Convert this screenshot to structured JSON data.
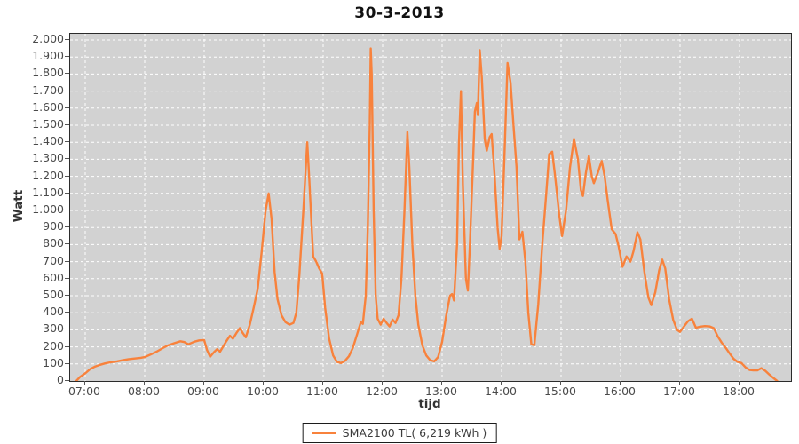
{
  "colors": {
    "line": "#f8823c",
    "plot_background": "#d2d2d2",
    "grid": "#ffffff",
    "border": "#2b2b2b",
    "tick_text": "#4a4a4a",
    "title_text": "#111111"
  },
  "chart_data": {
    "type": "line",
    "title": "30-3-2013",
    "xlabel": "tijd",
    "ylabel": "Watt",
    "ylim": [
      0,
      2000
    ],
    "grid": "white dashed gridlines on gray plot background",
    "legend_position": "bottom-center",
    "legend_label": "SMA2100 TL( 6,219 kWh )",
    "ytick_values": [
      0,
      100,
      200,
      300,
      400,
      500,
      600,
      700,
      800,
      900,
      1000,
      1100,
      1200,
      1300,
      1400,
      1500,
      1600,
      1700,
      1800,
      1900,
      2000
    ],
    "ytick_labels": [
      "0",
      "100",
      "200",
      "300",
      "400",
      "500",
      "600",
      "700",
      "800",
      "900",
      "1.000",
      "1.100",
      "1.200",
      "1.300",
      "1.400",
      "1.500",
      "1.600",
      "1.700",
      "1.800",
      "1.900",
      "2.000"
    ],
    "xtick_labels": [
      "07:00",
      "08:00",
      "09:00",
      "10:00",
      "11:00",
      "12:00",
      "13:00",
      "14:00",
      "15:00",
      "16:00",
      "17:00",
      "18:00"
    ],
    "series": [
      {
        "name": "SMA2100 TL( 6,219 kWh )",
        "color": "#f8823c",
        "points": [
          [
            "06:51",
            0
          ],
          [
            "06:55",
            25
          ],
          [
            "07:00",
            45
          ],
          [
            "07:05",
            70
          ],
          [
            "07:10",
            85
          ],
          [
            "07:15",
            95
          ],
          [
            "07:20",
            103
          ],
          [
            "07:26",
            110
          ],
          [
            "07:32",
            115
          ],
          [
            "07:38",
            122
          ],
          [
            "07:44",
            128
          ],
          [
            "07:50",
            132
          ],
          [
            "07:56",
            136
          ],
          [
            "08:00",
            140
          ],
          [
            "08:06",
            155
          ],
          [
            "08:12",
            172
          ],
          [
            "08:18",
            192
          ],
          [
            "08:24",
            210
          ],
          [
            "08:30",
            222
          ],
          [
            "08:36",
            233
          ],
          [
            "08:40",
            228
          ],
          [
            "08:44",
            215
          ],
          [
            "08:50",
            230
          ],
          [
            "08:55",
            238
          ],
          [
            "09:00",
            240
          ],
          [
            "09:03",
            180
          ],
          [
            "09:06",
            142
          ],
          [
            "09:10",
            170
          ],
          [
            "09:13",
            186
          ],
          [
            "09:16",
            172
          ],
          [
            "09:22",
            230
          ],
          [
            "09:26",
            265
          ],
          [
            "09:29",
            248
          ],
          [
            "09:33",
            285
          ],
          [
            "09:36",
            310
          ],
          [
            "09:39",
            280
          ],
          [
            "09:42",
            256
          ],
          [
            "09:46",
            330
          ],
          [
            "09:50",
            430
          ],
          [
            "09:54",
            540
          ],
          [
            "09:58",
            760
          ],
          [
            "10:02",
            1000
          ],
          [
            "10:05",
            1100
          ],
          [
            "10:08",
            950
          ],
          [
            "10:11",
            640
          ],
          [
            "10:14",
            480
          ],
          [
            "10:18",
            385
          ],
          [
            "10:22",
            345
          ],
          [
            "10:26",
            330
          ],
          [
            "10:30",
            340
          ],
          [
            "10:33",
            400
          ],
          [
            "10:36",
            620
          ],
          [
            "10:40",
            1000
          ],
          [
            "10:44",
            1400
          ],
          [
            "10:46",
            1180
          ],
          [
            "10:48",
            950
          ],
          [
            "10:50",
            730
          ],
          [
            "10:53",
            700
          ],
          [
            "10:56",
            660
          ],
          [
            "10:59",
            630
          ],
          [
            "11:02",
            430
          ],
          [
            "11:06",
            250
          ],
          [
            "11:10",
            150
          ],
          [
            "11:14",
            112
          ],
          [
            "11:18",
            105
          ],
          [
            "11:22",
            118
          ],
          [
            "11:26",
            145
          ],
          [
            "11:30",
            195
          ],
          [
            "11:34",
            270
          ],
          [
            "11:38",
            345
          ],
          [
            "11:40",
            335
          ],
          [
            "11:43",
            500
          ],
          [
            "11:45",
            900
          ],
          [
            "11:47",
            1500
          ],
          [
            "11:48",
            1950
          ],
          [
            "11:49",
            1800
          ],
          [
            "11:51",
            1000
          ],
          [
            "11:53",
            500
          ],
          [
            "11:55",
            365
          ],
          [
            "11:58",
            330
          ],
          [
            "12:01",
            365
          ],
          [
            "12:04",
            340
          ],
          [
            "12:07",
            320
          ],
          [
            "12:10",
            360
          ],
          [
            "12:13",
            340
          ],
          [
            "12:16",
            385
          ],
          [
            "12:19",
            600
          ],
          [
            "12:22",
            1000
          ],
          [
            "12:25",
            1460
          ],
          [
            "12:27",
            1250
          ],
          [
            "12:30",
            800
          ],
          [
            "12:33",
            500
          ],
          [
            "12:36",
            330
          ],
          [
            "12:40",
            210
          ],
          [
            "12:44",
            150
          ],
          [
            "12:48",
            122
          ],
          [
            "12:52",
            115
          ],
          [
            "12:56",
            140
          ],
          [
            "13:00",
            230
          ],
          [
            "13:04",
            380
          ],
          [
            "13:08",
            500
          ],
          [
            "13:10",
            510
          ],
          [
            "13:12",
            472
          ],
          [
            "13:15",
            800
          ],
          [
            "13:17",
            1400
          ],
          [
            "13:19",
            1700
          ],
          [
            "13:21",
            1150
          ],
          [
            "13:24",
            600
          ],
          [
            "13:26",
            530
          ],
          [
            "13:28",
            800
          ],
          [
            "13:31",
            1250
          ],
          [
            "13:33",
            1580
          ],
          [
            "13:35",
            1630
          ],
          [
            "13:36",
            1560
          ],
          [
            "13:38",
            1940
          ],
          [
            "13:40",
            1780
          ],
          [
            "13:43",
            1420
          ],
          [
            "13:45",
            1350
          ],
          [
            "13:48",
            1430
          ],
          [
            "13:50",
            1448
          ],
          [
            "13:53",
            1200
          ],
          [
            "13:56",
            900
          ],
          [
            "13:58",
            775
          ],
          [
            "14:00",
            850
          ],
          [
            "14:03",
            1350
          ],
          [
            "14:06",
            1865
          ],
          [
            "14:09",
            1750
          ],
          [
            "14:12",
            1500
          ],
          [
            "14:15",
            1255
          ],
          [
            "14:18",
            830
          ],
          [
            "14:21",
            875
          ],
          [
            "14:24",
            700
          ],
          [
            "14:27",
            400
          ],
          [
            "14:30",
            215
          ],
          [
            "14:33",
            210
          ],
          [
            "14:37",
            450
          ],
          [
            "14:41",
            800
          ],
          [
            "14:45",
            1100
          ],
          [
            "14:48",
            1330
          ],
          [
            "14:51",
            1345
          ],
          [
            "14:54",
            1200
          ],
          [
            "14:58",
            980
          ],
          [
            "15:01",
            850
          ],
          [
            "15:05",
            1000
          ],
          [
            "15:09",
            1250
          ],
          [
            "15:13",
            1420
          ],
          [
            "15:17",
            1300
          ],
          [
            "15:20",
            1120
          ],
          [
            "15:22",
            1085
          ],
          [
            "15:25",
            1220
          ],
          [
            "15:28",
            1320
          ],
          [
            "15:31",
            1200
          ],
          [
            "15:33",
            1160
          ],
          [
            "15:37",
            1220
          ],
          [
            "15:41",
            1290
          ],
          [
            "15:44",
            1200
          ],
          [
            "15:47",
            1060
          ],
          [
            "15:51",
            890
          ],
          [
            "15:55",
            862
          ],
          [
            "15:58",
            790
          ],
          [
            "16:02",
            670
          ],
          [
            "16:06",
            730
          ],
          [
            "16:10",
            700
          ],
          [
            "16:13",
            760
          ],
          [
            "16:17",
            872
          ],
          [
            "16:20",
            830
          ],
          [
            "16:24",
            640
          ],
          [
            "16:28",
            490
          ],
          [
            "16:31",
            445
          ],
          [
            "16:35",
            520
          ],
          [
            "16:39",
            650
          ],
          [
            "16:42",
            712
          ],
          [
            "16:45",
            660
          ],
          [
            "16:49",
            480
          ],
          [
            "16:53",
            360
          ],
          [
            "16:57",
            300
          ],
          [
            "17:00",
            288
          ],
          [
            "17:04",
            320
          ],
          [
            "17:08",
            350
          ],
          [
            "17:12",
            365
          ],
          [
            "17:16",
            312
          ],
          [
            "17:20",
            318
          ],
          [
            "17:25",
            322
          ],
          [
            "17:30",
            320
          ],
          [
            "17:34",
            310
          ],
          [
            "17:38",
            262
          ],
          [
            "17:42",
            225
          ],
          [
            "17:46",
            195
          ],
          [
            "17:50",
            162
          ],
          [
            "17:54",
            130
          ],
          [
            "17:58",
            112
          ],
          [
            "18:02",
            105
          ],
          [
            "18:06",
            80
          ],
          [
            "18:10",
            65
          ],
          [
            "18:14",
            62
          ],
          [
            "18:18",
            62
          ],
          [
            "18:22",
            75
          ],
          [
            "18:26",
            60
          ],
          [
            "18:30",
            38
          ],
          [
            "18:34",
            18
          ],
          [
            "18:38",
            0
          ]
        ]
      }
    ]
  }
}
